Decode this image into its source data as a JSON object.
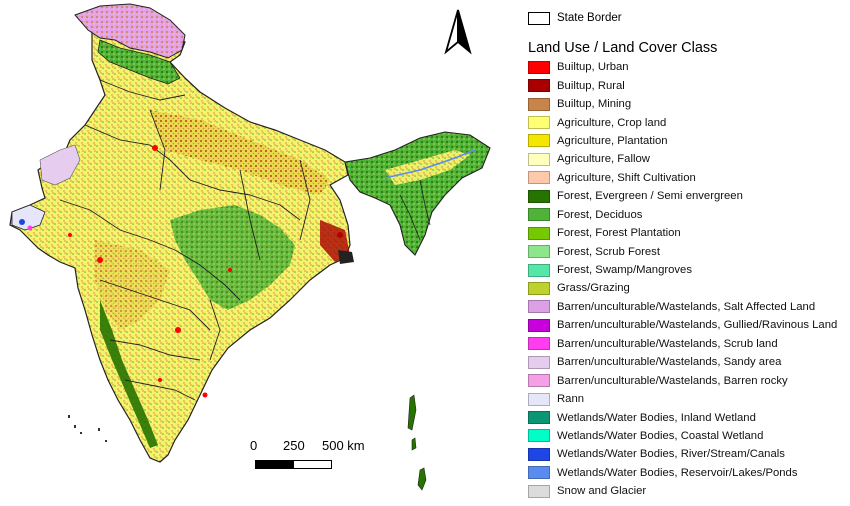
{
  "legend": {
    "state_border_label": "State Border",
    "title": "Land Use / Land Cover Class",
    "items": [
      {
        "label": "Builtup, Urban",
        "color": "#ff0000"
      },
      {
        "label": "Builtup, Rural",
        "color": "#a80000"
      },
      {
        "label": "Builtup, Mining",
        "color": "#c8844a"
      },
      {
        "label": "Agriculture, Crop land",
        "color": "#ffff73"
      },
      {
        "label": "Agriculture, Plantation",
        "color": "#f5e600"
      },
      {
        "label": "Agriculture, Fallow",
        "color": "#ffffbe"
      },
      {
        "label": "Agriculture, Shift Cultivation",
        "color": "#ffc8aa"
      },
      {
        "label": "Forest, Evergreen / Semi envergreen",
        "color": "#267300"
      },
      {
        "label": "Forest, Deciduos",
        "color": "#4fb33a"
      },
      {
        "label": "Forest, Forest Plantation",
        "color": "#76c800"
      },
      {
        "label": "Forest, Scrub Forest",
        "color": "#8ee68c"
      },
      {
        "label": "Forest, Swamp/Mangroves",
        "color": "#55e6aa"
      },
      {
        "label": "Grass/Grazing",
        "color": "#bed22d"
      },
      {
        "label": "Barren/unculturable/Wastelands, Salt Affected Land",
        "color": "#dca0e6"
      },
      {
        "label": "Barren/unculturable/Wastelands, Gullied/Ravinous Land",
        "color": "#c800dc"
      },
      {
        "label": "Barren/unculturable/Wastelands, Scrub land",
        "color": "#ff3cf0"
      },
      {
        "label": "Barren/unculturable/Wastelands, Sandy area",
        "color": "#e6cdf0"
      },
      {
        "label": "Barren/unculturable/Wastelands, Barren rocky",
        "color": "#f5a0e6"
      },
      {
        "label": "Rann",
        "color": "#e6e6fa"
      },
      {
        "label": "Wetlands/Water Bodies, Inland Wetland",
        "color": "#0a9673"
      },
      {
        "label": "Wetlands/Water Bodies, Coastal Wetland",
        "color": "#00ffc8"
      },
      {
        "label": "Wetlands/Water Bodies, River/Stream/Canals",
        "color": "#1e46e6"
      },
      {
        "label": "Wetlands/Water Bodies, Reservoir/Lakes/Ponds",
        "color": "#5a8cf0"
      },
      {
        "label": "Snow and Glacier",
        "color": "#dcdcdc"
      }
    ]
  },
  "scale": {
    "labels": [
      "0",
      "250",
      "500 km"
    ]
  },
  "north_arrow": {
    "icon": "north-arrow-icon"
  }
}
